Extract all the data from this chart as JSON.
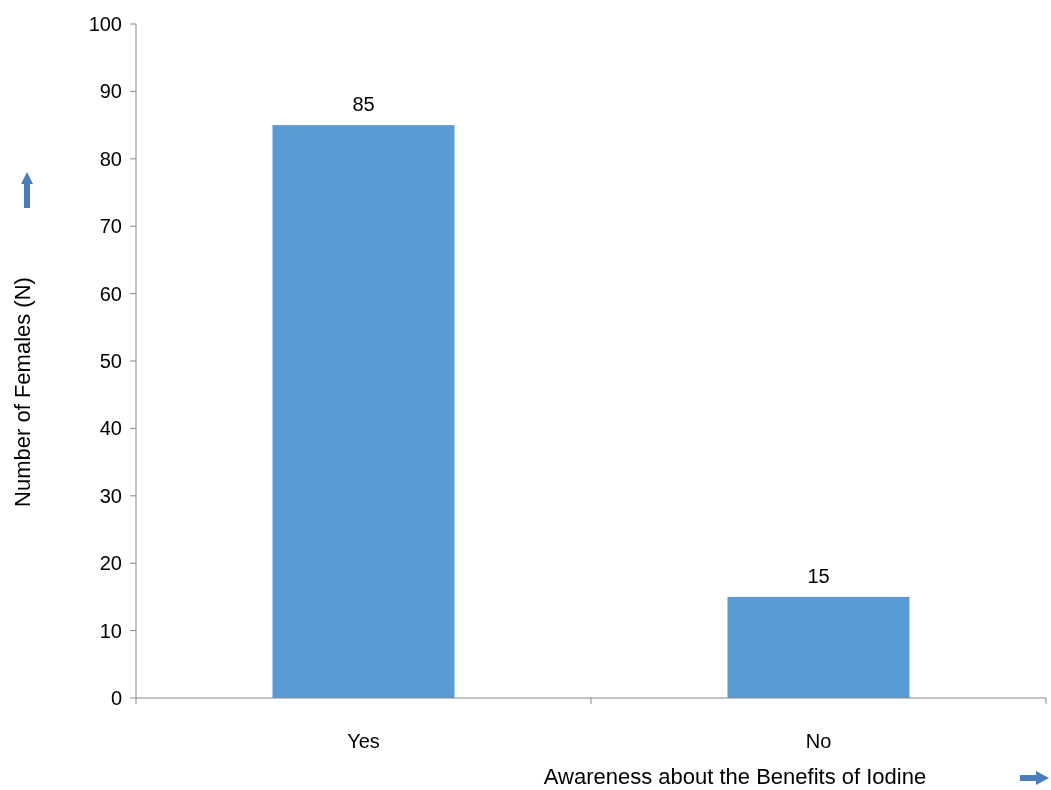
{
  "chart_data": {
    "type": "bar",
    "xlabel": "Awareness about the Benefits of Iodine",
    "ylabel": "Number of Females (N)",
    "categories": [
      "Yes",
      "No"
    ],
    "values": [
      85,
      15
    ],
    "color": "#5b9bd5",
    "ylim": [
      0,
      100
    ],
    "yticks": [
      0,
      10,
      20,
      30,
      40,
      50,
      60,
      70,
      80,
      90,
      100
    ],
    "data_labels": true
  }
}
